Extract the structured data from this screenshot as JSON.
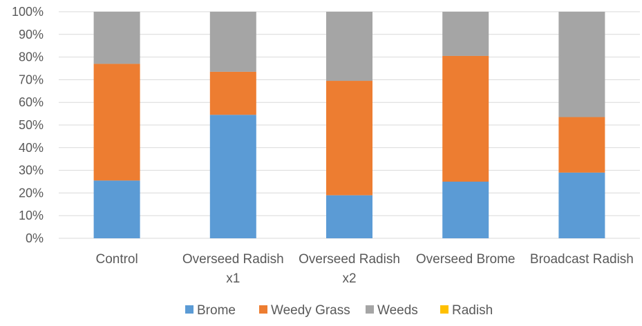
{
  "chart_data": {
    "type": "bar",
    "stacked": true,
    "percent_stacked": true,
    "categories": [
      [
        "Control"
      ],
      [
        "Overseed Radish",
        "x1"
      ],
      [
        "Overseed Radish",
        "x2"
      ],
      [
        "Overseed Brome"
      ],
      [
        "Broadcast Radish"
      ]
    ],
    "series": [
      {
        "name": "Brome",
        "color": "#5b9bd5",
        "values": [
          25.5,
          54.5,
          19,
          25,
          29
        ]
      },
      {
        "name": "Weedy Grass",
        "color": "#ed7d31",
        "values": [
          51.5,
          19,
          50.5,
          55.5,
          24.5
        ]
      },
      {
        "name": "Weeds",
        "color": "#a5a5a5",
        "values": [
          23,
          26.5,
          30.5,
          19.5,
          46.5
        ]
      },
      {
        "name": "Radish",
        "color": "#ffc000",
        "values": [
          0,
          0,
          0,
          0,
          0
        ]
      }
    ],
    "ylim": [
      0,
      100
    ],
    "yticks": [
      "0%",
      "10%",
      "20%",
      "30%",
      "40%",
      "50%",
      "60%",
      "70%",
      "80%",
      "90%",
      "100%"
    ],
    "grid": true,
    "legend": "bottom-center",
    "title": "",
    "xlabel": "",
    "ylabel": ""
  }
}
